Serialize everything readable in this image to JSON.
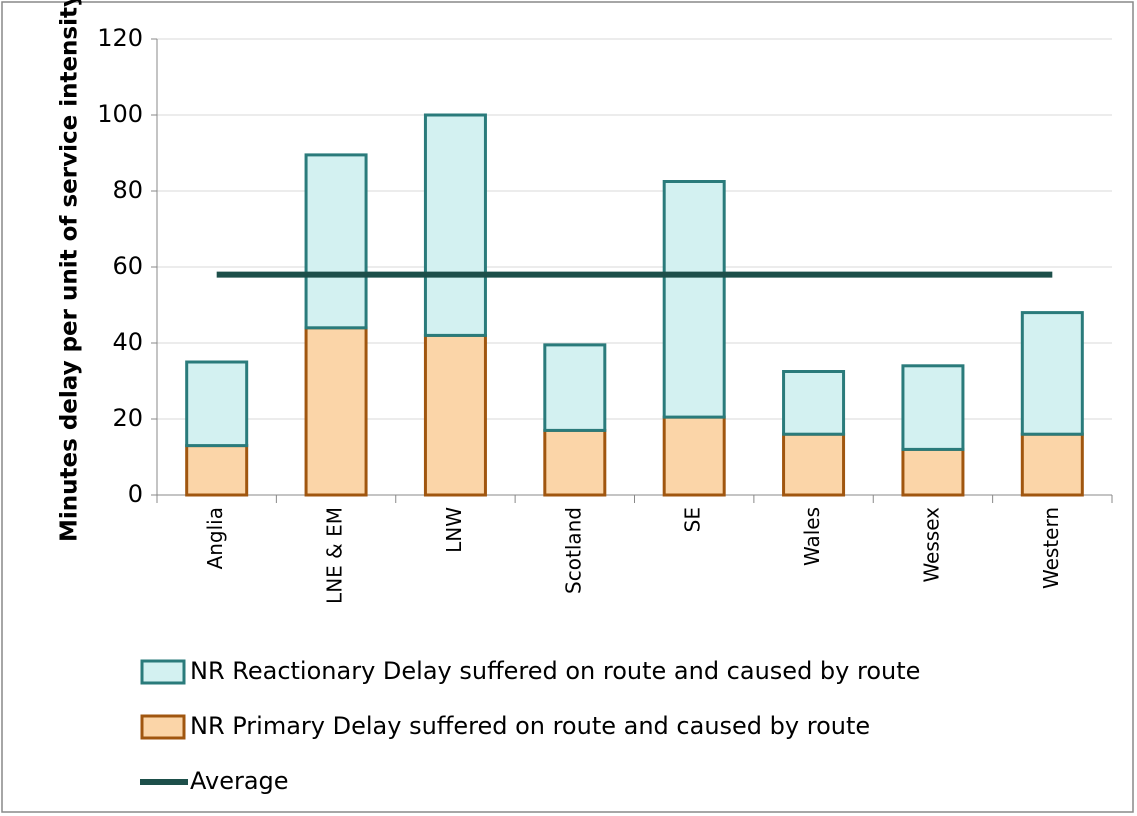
{
  "chart_data": {
    "type": "bar",
    "stacked": true,
    "y_label": "Minutes delay per unit of service intensity",
    "categories": [
      "Anglia",
      "LNE & EM",
      "LNW",
      "Scotland",
      "SE",
      "Wales",
      "Wessex",
      "Western"
    ],
    "series": [
      {
        "name": "NR Primary Delay suffered on route and caused by route",
        "type": "bar",
        "color": "#fbd5a8",
        "edge": "#a0560f",
        "values": [
          13,
          44,
          42,
          17,
          20.5,
          16,
          12,
          16
        ]
      },
      {
        "name": "NR Reactionary Delay suffered on route and caused by route",
        "type": "bar",
        "color": "#d3f1f1",
        "edge": "#2a7b7b",
        "values": [
          22,
          45.5,
          58,
          22.5,
          62,
          16.5,
          22,
          32
        ]
      },
      {
        "name": "Average",
        "type": "line",
        "color": "#1d4f4a",
        "values": [
          58,
          58,
          58,
          58,
          58,
          58,
          58,
          58
        ]
      }
    ],
    "ylim": [
      0,
      120
    ],
    "yticks": [
      0,
      20,
      40,
      60,
      80,
      100,
      120
    ],
    "grid": true
  }
}
